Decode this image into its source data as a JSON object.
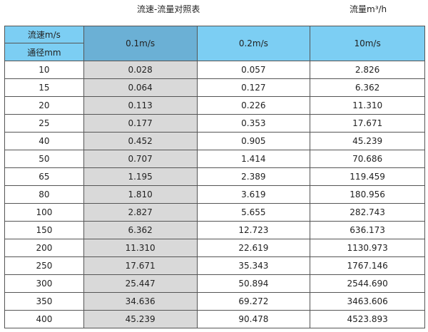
{
  "title": "流速-流量对照表",
  "unit_label": "流量m³/h",
  "header": {
    "speed_label": "流速m/s",
    "diameter_label": "通径mm",
    "columns": [
      "0.1m/s",
      "0.2m/s",
      "10m/s"
    ]
  },
  "rows": [
    [
      "10",
      "0.028",
      "0.057",
      "2.826"
    ],
    [
      "15",
      "0.064",
      "0.127",
      "6.362"
    ],
    [
      "20",
      "0.113",
      "0.226",
      "11.310"
    ],
    [
      "25",
      "0.177",
      "0.353",
      "17.671"
    ],
    [
      "40",
      "0.452",
      "0.905",
      "45.239"
    ],
    [
      "50",
      "0.707",
      "1.414",
      "70.686"
    ],
    [
      "65",
      "1.195",
      "2.389",
      "119.459"
    ],
    [
      "80",
      "1.810",
      "3.619",
      "180.956"
    ],
    [
      "100",
      "2.827",
      "5.655",
      "282.743"
    ],
    [
      "150",
      "6.362",
      "12.723",
      "636.173"
    ],
    [
      "200",
      "11.310",
      "22.619",
      "1130.973"
    ],
    [
      "250",
      "17.671",
      "35.343",
      "1767.146"
    ],
    [
      "300",
      "25.447",
      "50.894",
      "2544.690"
    ],
    [
      "350",
      "34.636",
      "69.272",
      "3463.606"
    ],
    [
      "400",
      "45.239",
      "90.478",
      "4523.893"
    ]
  ],
  "colors": {
    "header": "#7ccef3",
    "header_selected": "#6bb0d5",
    "highlight_column": "#d9d9d9"
  }
}
